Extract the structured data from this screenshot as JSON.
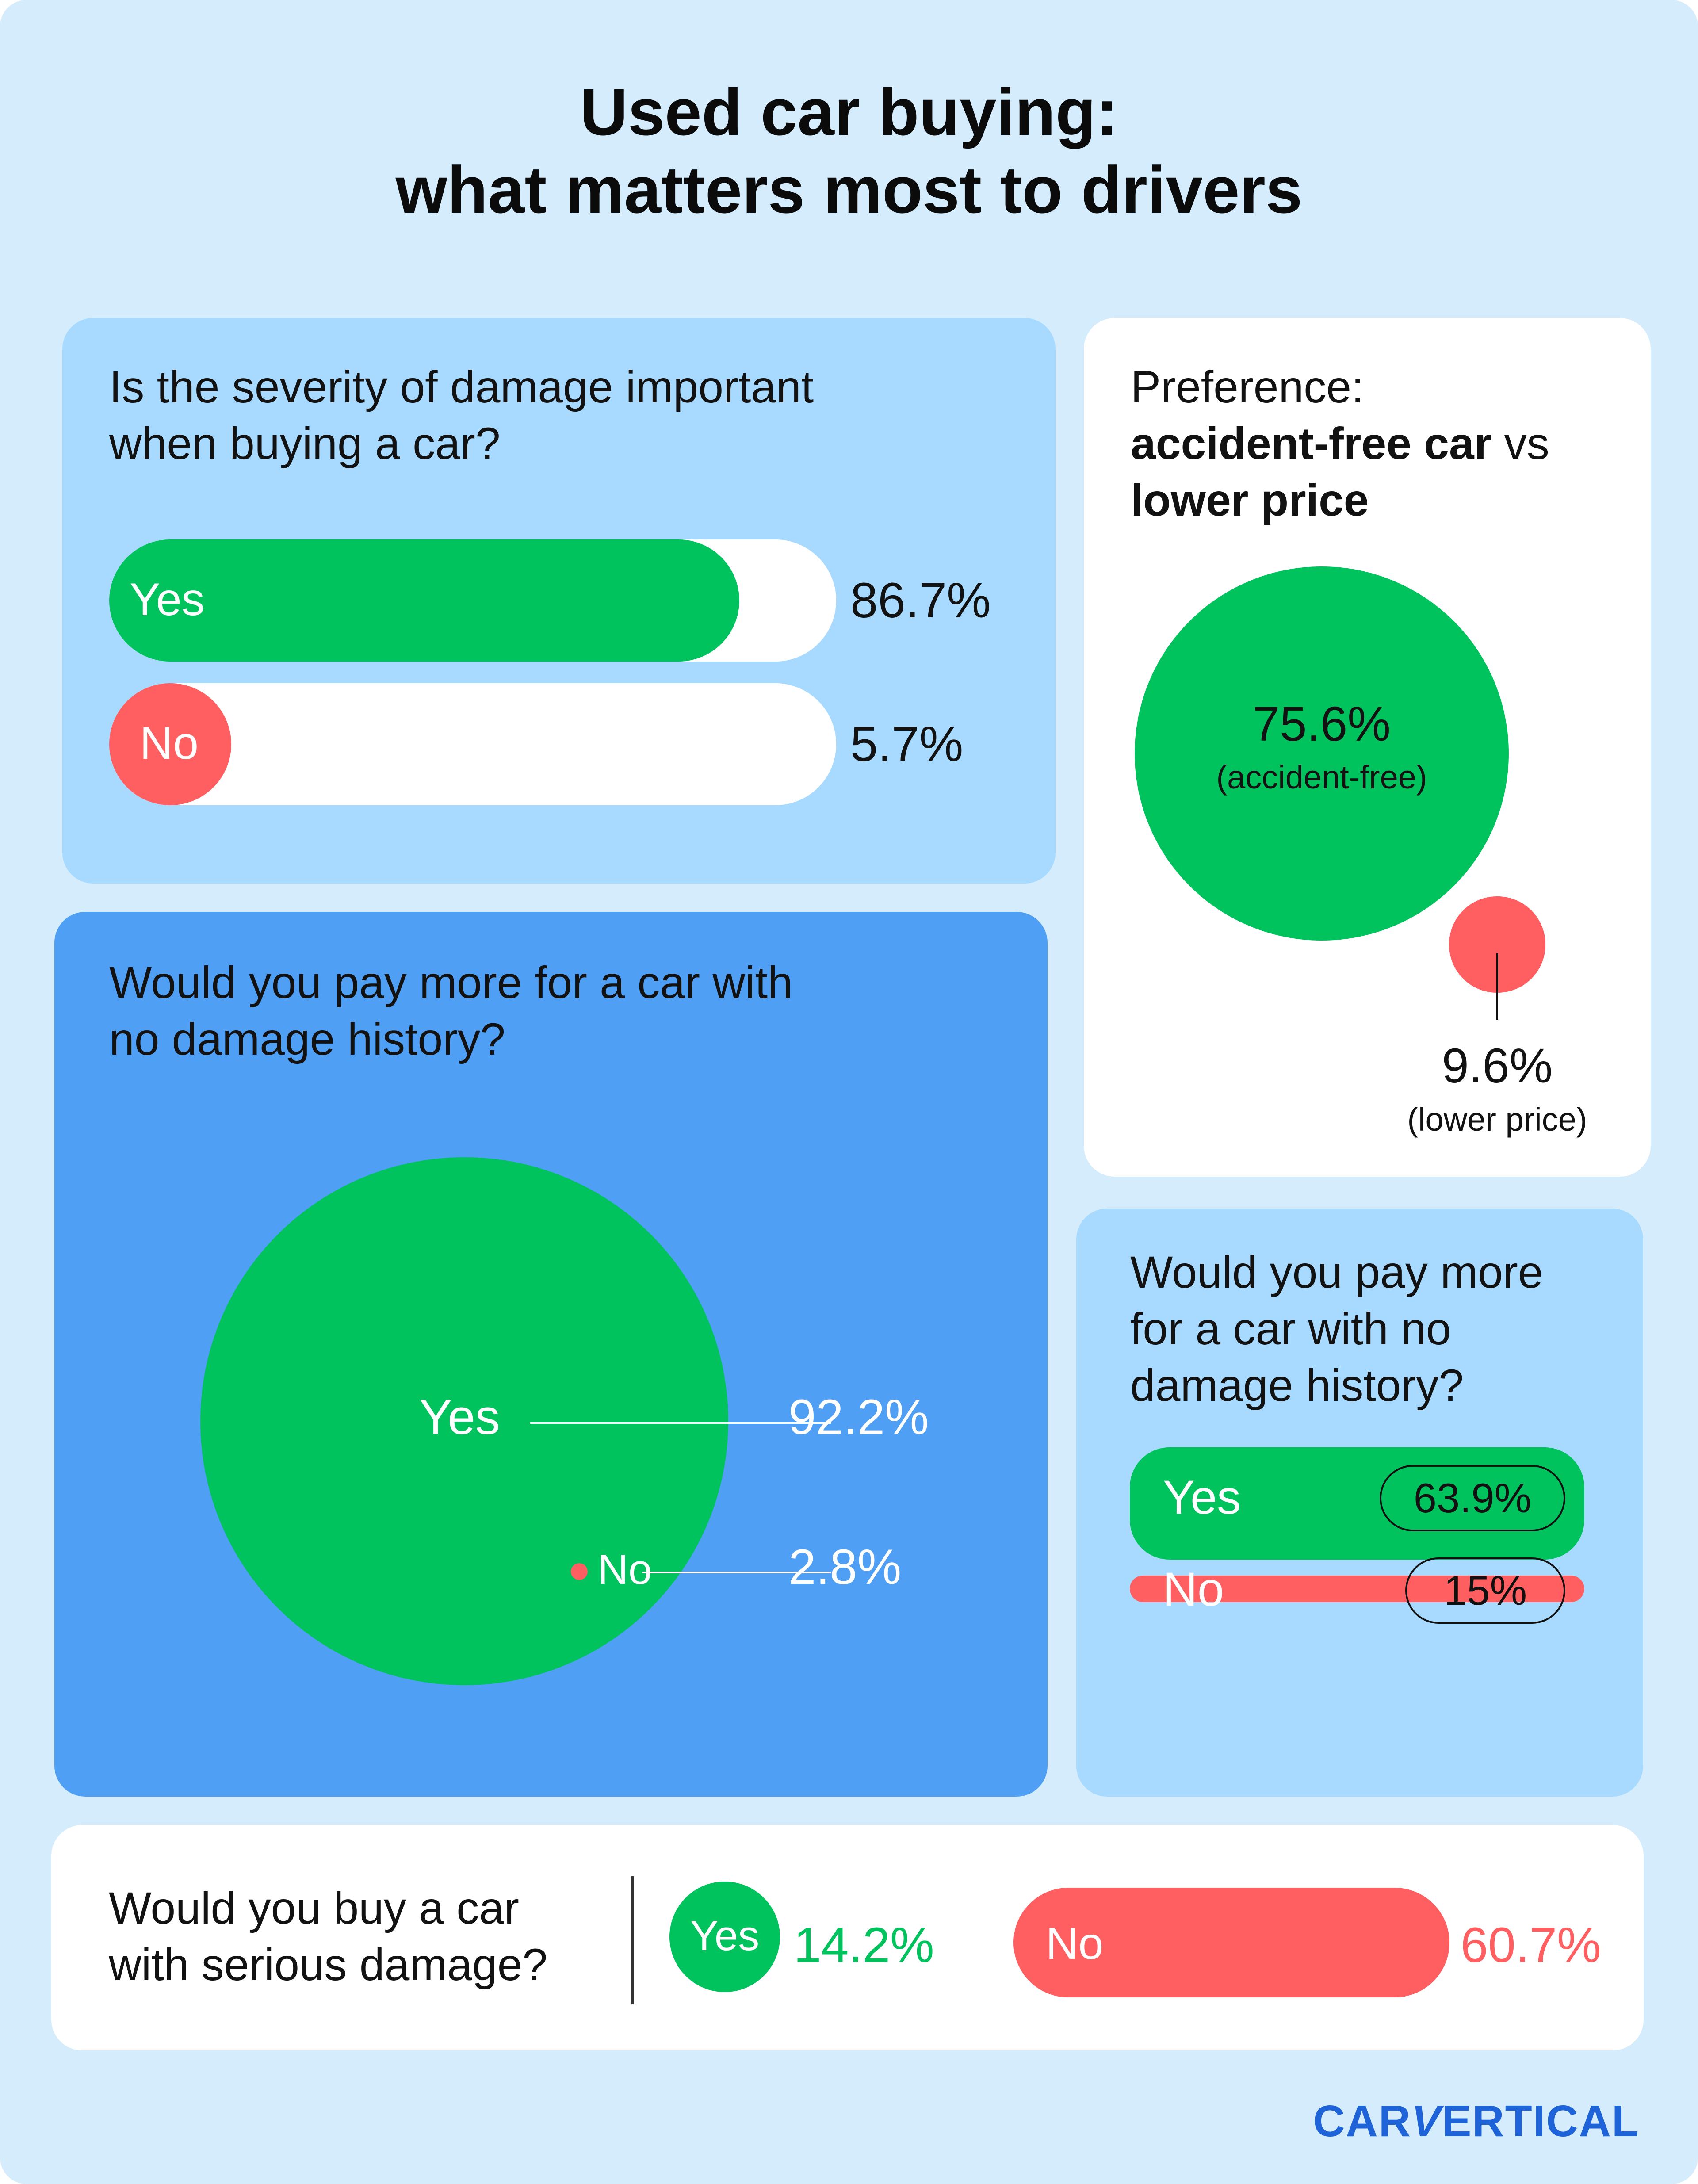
{
  "title_line1": "Used car buying:",
  "title_line2": "what matters most to drivers",
  "colors": {
    "background": "#d4ecfc",
    "yes": "#00c35e",
    "no": "#ff5f61",
    "panel_light": "#a8daff",
    "panel_dark": "#4f9ff4",
    "brand": "#1f63d8"
  },
  "chart_data": [
    {
      "type": "bar",
      "question_line1": "Is the severity of damage important",
      "question_line2": "when buying a car?",
      "categories": [
        "Yes",
        "No"
      ],
      "values": [
        86.7,
        5.7
      ],
      "value_labels": [
        "86.7%",
        "5.7%"
      ],
      "unit": "%"
    },
    {
      "type": "bubble",
      "title_line1": "Preference:",
      "title_bold1": "accident-free car",
      "title_vs": "vs",
      "title_bold2": "lower price",
      "categories": [
        "accident-free",
        "lower price"
      ],
      "values": [
        75.6,
        9.6
      ],
      "value_labels": [
        "75.6%",
        "9.6%"
      ],
      "sub_labels": [
        "(accident-free)",
        "(lower price)"
      ],
      "unit": "%"
    },
    {
      "type": "bubble",
      "question_line1": "Would you pay more for a car with",
      "question_line2": "no damage history?",
      "categories": [
        "Yes",
        "No"
      ],
      "values": [
        92.2,
        2.8
      ],
      "value_labels": [
        "92.2%",
        "2.8%"
      ],
      "unit": "%"
    },
    {
      "type": "bar",
      "question_line1": "Would you pay more",
      "question_line2": "for a car with no",
      "question_line3": "damage history?",
      "categories": [
        "Yes",
        "No"
      ],
      "values": [
        63.9,
        15
      ],
      "value_labels": [
        "63.9%",
        "15%"
      ],
      "unit": "%"
    },
    {
      "type": "bar",
      "question_line1": "Would you buy a car",
      "question_line2": "with serious damage?",
      "categories": [
        "Yes",
        "No"
      ],
      "values": [
        14.2,
        60.7
      ],
      "value_labels": [
        "14.2%",
        "60.7%"
      ],
      "unit": "%"
    }
  ],
  "brand": {
    "part1": "CAR",
    "part2": "V",
    "part3": "ERTICAL",
    "icon": "carvertical-logo"
  }
}
